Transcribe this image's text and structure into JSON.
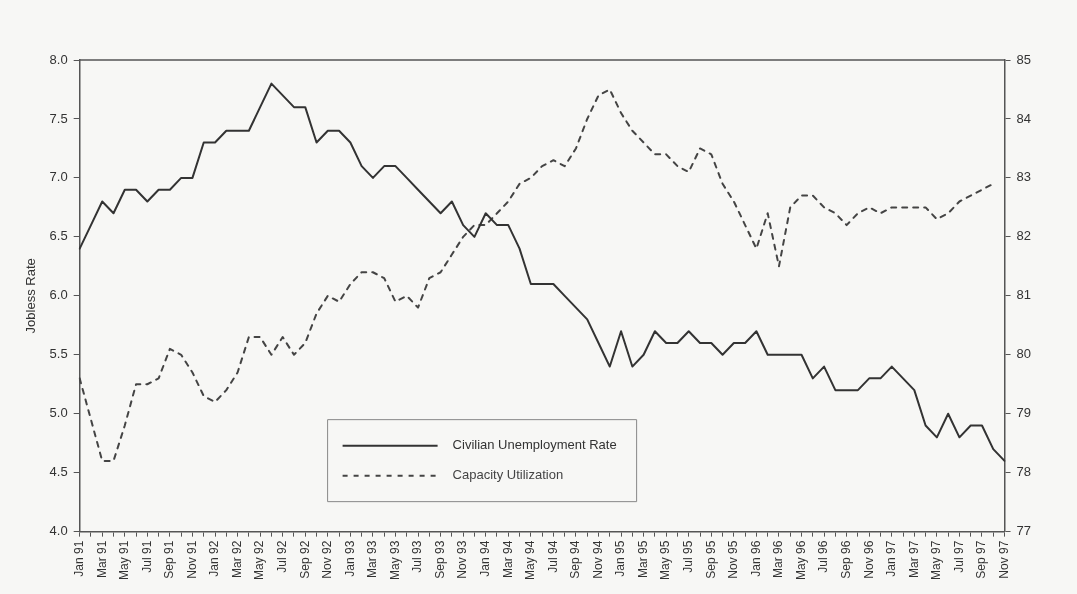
{
  "chart_data": {
    "type": "line",
    "ylabel": "Jobless Rate",
    "categories": [
      "Jan 91",
      null,
      "Mar 91",
      null,
      "May 91",
      null,
      "Jul 91",
      null,
      "Sep 91",
      null,
      "Nov 91",
      null,
      "Jan 92",
      null,
      "Mar 92",
      null,
      "May 92",
      null,
      "Jul 92",
      null,
      "Sep 92",
      null,
      "Nov 92",
      null,
      "Jan 93",
      null,
      "Mar 93",
      null,
      "May 93",
      null,
      "Jul 93",
      null,
      "Sep 93",
      null,
      "Nov 93",
      null,
      "Jan 94",
      null,
      "Mar 94",
      null,
      "May 94",
      null,
      "Jul 94",
      null,
      "Sep 94",
      null,
      "Nov 94",
      null,
      "Jan 95",
      null,
      "Mar 95",
      null,
      "May 95",
      null,
      "Jul 95",
      null,
      "Sep 95",
      null,
      "Nov 95",
      null,
      "Jan 96",
      null,
      "Mar 96",
      null,
      "May 96",
      null,
      "Jul 96",
      null,
      "Sep 96",
      null,
      "Nov 96",
      null,
      "Jan 97",
      null,
      "Mar 97",
      null,
      "May 97",
      null,
      "Jul 97",
      null,
      "Sep 97",
      null,
      "Nov 97"
    ],
    "series": [
      {
        "name": "Civilian Unemployment Rate",
        "color": "#333333",
        "line_style": "solid",
        "values": [
          6.4,
          6.6,
          6.8,
          6.7,
          6.9,
          6.9,
          6.8,
          6.9,
          6.9,
          7.0,
          7.0,
          7.3,
          7.3,
          7.4,
          7.4,
          7.4,
          7.6,
          7.8,
          7.7,
          7.6,
          7.6,
          7.3,
          7.4,
          7.4,
          7.3,
          7.1,
          7.0,
          7.1,
          7.1,
          7.0,
          6.9,
          6.8,
          6.7,
          6.8,
          6.6,
          6.5,
          6.7,
          6.6,
          6.6,
          6.4,
          6.1,
          6.1,
          6.1,
          6.0,
          5.9,
          5.8,
          5.6,
          5.4,
          5.7,
          5.4,
          5.5,
          5.7,
          5.6,
          5.6,
          5.7,
          5.6,
          5.6,
          5.5,
          5.6,
          5.6,
          5.7,
          5.5,
          5.5,
          5.5,
          5.5,
          5.3,
          5.4,
          5.2,
          5.2,
          5.2,
          5.3,
          5.3,
          5.4,
          5.3,
          5.2,
          4.9,
          4.8,
          5.0,
          4.8,
          4.9,
          4.9,
          4.7,
          4.6
        ]
      },
      {
        "name": "Capacity Utilization",
        "color": "#444444",
        "line_style": "dashed",
        "axis": "y2",
        "values": [
          79.6,
          78.9,
          78.2,
          78.2,
          78.8,
          79.5,
          79.5,
          79.6,
          80.1,
          80.0,
          79.7,
          79.3,
          79.2,
          79.4,
          79.7,
          80.3,
          80.3,
          80.0,
          80.3,
          80.0,
          80.2,
          80.7,
          81.0,
          80.9,
          81.2,
          81.4,
          81.4,
          81.3,
          80.9,
          81.0,
          80.8,
          81.3,
          81.4,
          81.7,
          82.0,
          82.2,
          82.2,
          82.4,
          82.6,
          82.9,
          83.0,
          83.2,
          83.3,
          83.2,
          83.5,
          84.0,
          84.4,
          84.5,
          84.1,
          83.8,
          83.6,
          83.4,
          83.4,
          83.2,
          83.1,
          83.5,
          83.4,
          82.9,
          82.6,
          82.2,
          81.8,
          82.4,
          81.5,
          82.5,
          82.7,
          82.7,
          82.5,
          82.4,
          82.2,
          82.4,
          82.5,
          82.4,
          82.5,
          82.5,
          82.5,
          82.5,
          82.3,
          82.4,
          82.6,
          82.7,
          82.8,
          82.9,
          null
        ]
      }
    ],
    "ylim": [
      4,
      8
    ],
    "yticks": [
      {
        "value": 4,
        "label": "4.0"
      },
      {
        "value": 4.5,
        "label": "4.5"
      },
      {
        "value": 5,
        "label": "5.0"
      },
      {
        "value": 5.5,
        "label": "5.5"
      },
      {
        "value": 6,
        "label": "6.0"
      },
      {
        "value": 6.5,
        "label": "6.5"
      },
      {
        "value": 7,
        "label": "7.0"
      },
      {
        "value": 7.5,
        "label": "7.5"
      },
      {
        "value": 8,
        "label": "8.0"
      }
    ],
    "y2lim": [
      77,
      85
    ],
    "y2ticks": [
      77,
      78,
      79,
      80,
      81,
      82,
      83,
      84,
      85
    ],
    "grid": false,
    "legend": "bottom",
    "marker": "none"
  }
}
